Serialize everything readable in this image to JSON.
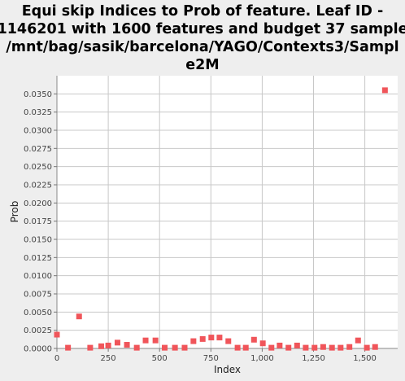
{
  "chart_data": {
    "type": "scatter",
    "title_lines": [
      "Equi skip Indices to Prob of feature. Leaf ID -",
      "1146201 with 1600 features and budget 37 sample",
      "/mnt/bag/sasik/barcelona/YAGO/Contexts3/Sampl",
      "e2M"
    ],
    "xlabel": "Index",
    "ylabel": "Prob",
    "xlim": [
      0,
      1660
    ],
    "ylim": [
      0,
      0.0375
    ],
    "xticks": [
      0,
      250,
      500,
      750,
      1000,
      1250,
      1500
    ],
    "xtick_labels": [
      "0",
      "250",
      "500",
      "750",
      "1,000",
      "1,250",
      "1,500"
    ],
    "yticks": [
      0,
      0.0025,
      0.005,
      0.0075,
      0.01,
      0.0125,
      0.015,
      0.0175,
      0.02,
      0.0225,
      0.025,
      0.0275,
      0.03,
      0.0325,
      0.035
    ],
    "ytick_labels": [
      "0.0000",
      "0.0025",
      "0.0050",
      "0.0075",
      "0.0100",
      "0.0125",
      "0.0150",
      "0.0175",
      "0.0200",
      "0.0225",
      "0.0250",
      "0.0275",
      "0.0300",
      "0.0325",
      "0.0350"
    ],
    "grid": true,
    "marker_color": "#f0555a",
    "points": [
      {
        "x": 0,
        "y": 0.0019
      },
      {
        "x": 54,
        "y": 0.0001
      },
      {
        "x": 108,
        "y": 0.0044
      },
      {
        "x": 162,
        "y": 0.0001
      },
      {
        "x": 216,
        "y": 0.0003
      },
      {
        "x": 250,
        "y": 0.0004
      },
      {
        "x": 295,
        "y": 0.0008
      },
      {
        "x": 341,
        "y": 0.0005
      },
      {
        "x": 389,
        "y": 0.0001
      },
      {
        "x": 432,
        "y": 0.0011
      },
      {
        "x": 480,
        "y": 0.0011
      },
      {
        "x": 525,
        "y": 0.0001
      },
      {
        "x": 575,
        "y": 0.0001
      },
      {
        "x": 622,
        "y": 0.0001
      },
      {
        "x": 665,
        "y": 0.001
      },
      {
        "x": 710,
        "y": 0.0013
      },
      {
        "x": 752,
        "y": 0.0015
      },
      {
        "x": 792,
        "y": 0.0015
      },
      {
        "x": 835,
        "y": 0.001
      },
      {
        "x": 880,
        "y": 0.0001
      },
      {
        "x": 920,
        "y": 0.0001
      },
      {
        "x": 960,
        "y": 0.0012
      },
      {
        "x": 1003,
        "y": 0.0007
      },
      {
        "x": 1045,
        "y": 0.0001
      },
      {
        "x": 1085,
        "y": 0.0004
      },
      {
        "x": 1128,
        "y": 0.0001
      },
      {
        "x": 1170,
        "y": 0.0004
      },
      {
        "x": 1212,
        "y": 0.0001
      },
      {
        "x": 1255,
        "y": 0.0001
      },
      {
        "x": 1297,
        "y": 0.0002
      },
      {
        "x": 1340,
        "y": 0.0001
      },
      {
        "x": 1382,
        "y": 0.0001
      },
      {
        "x": 1425,
        "y": 0.0002
      },
      {
        "x": 1467,
        "y": 0.0011
      },
      {
        "x": 1510,
        "y": 0.0001
      },
      {
        "x": 1550,
        "y": 0.0002
      },
      {
        "x": 1598,
        "y": 0.0355
      }
    ]
  }
}
